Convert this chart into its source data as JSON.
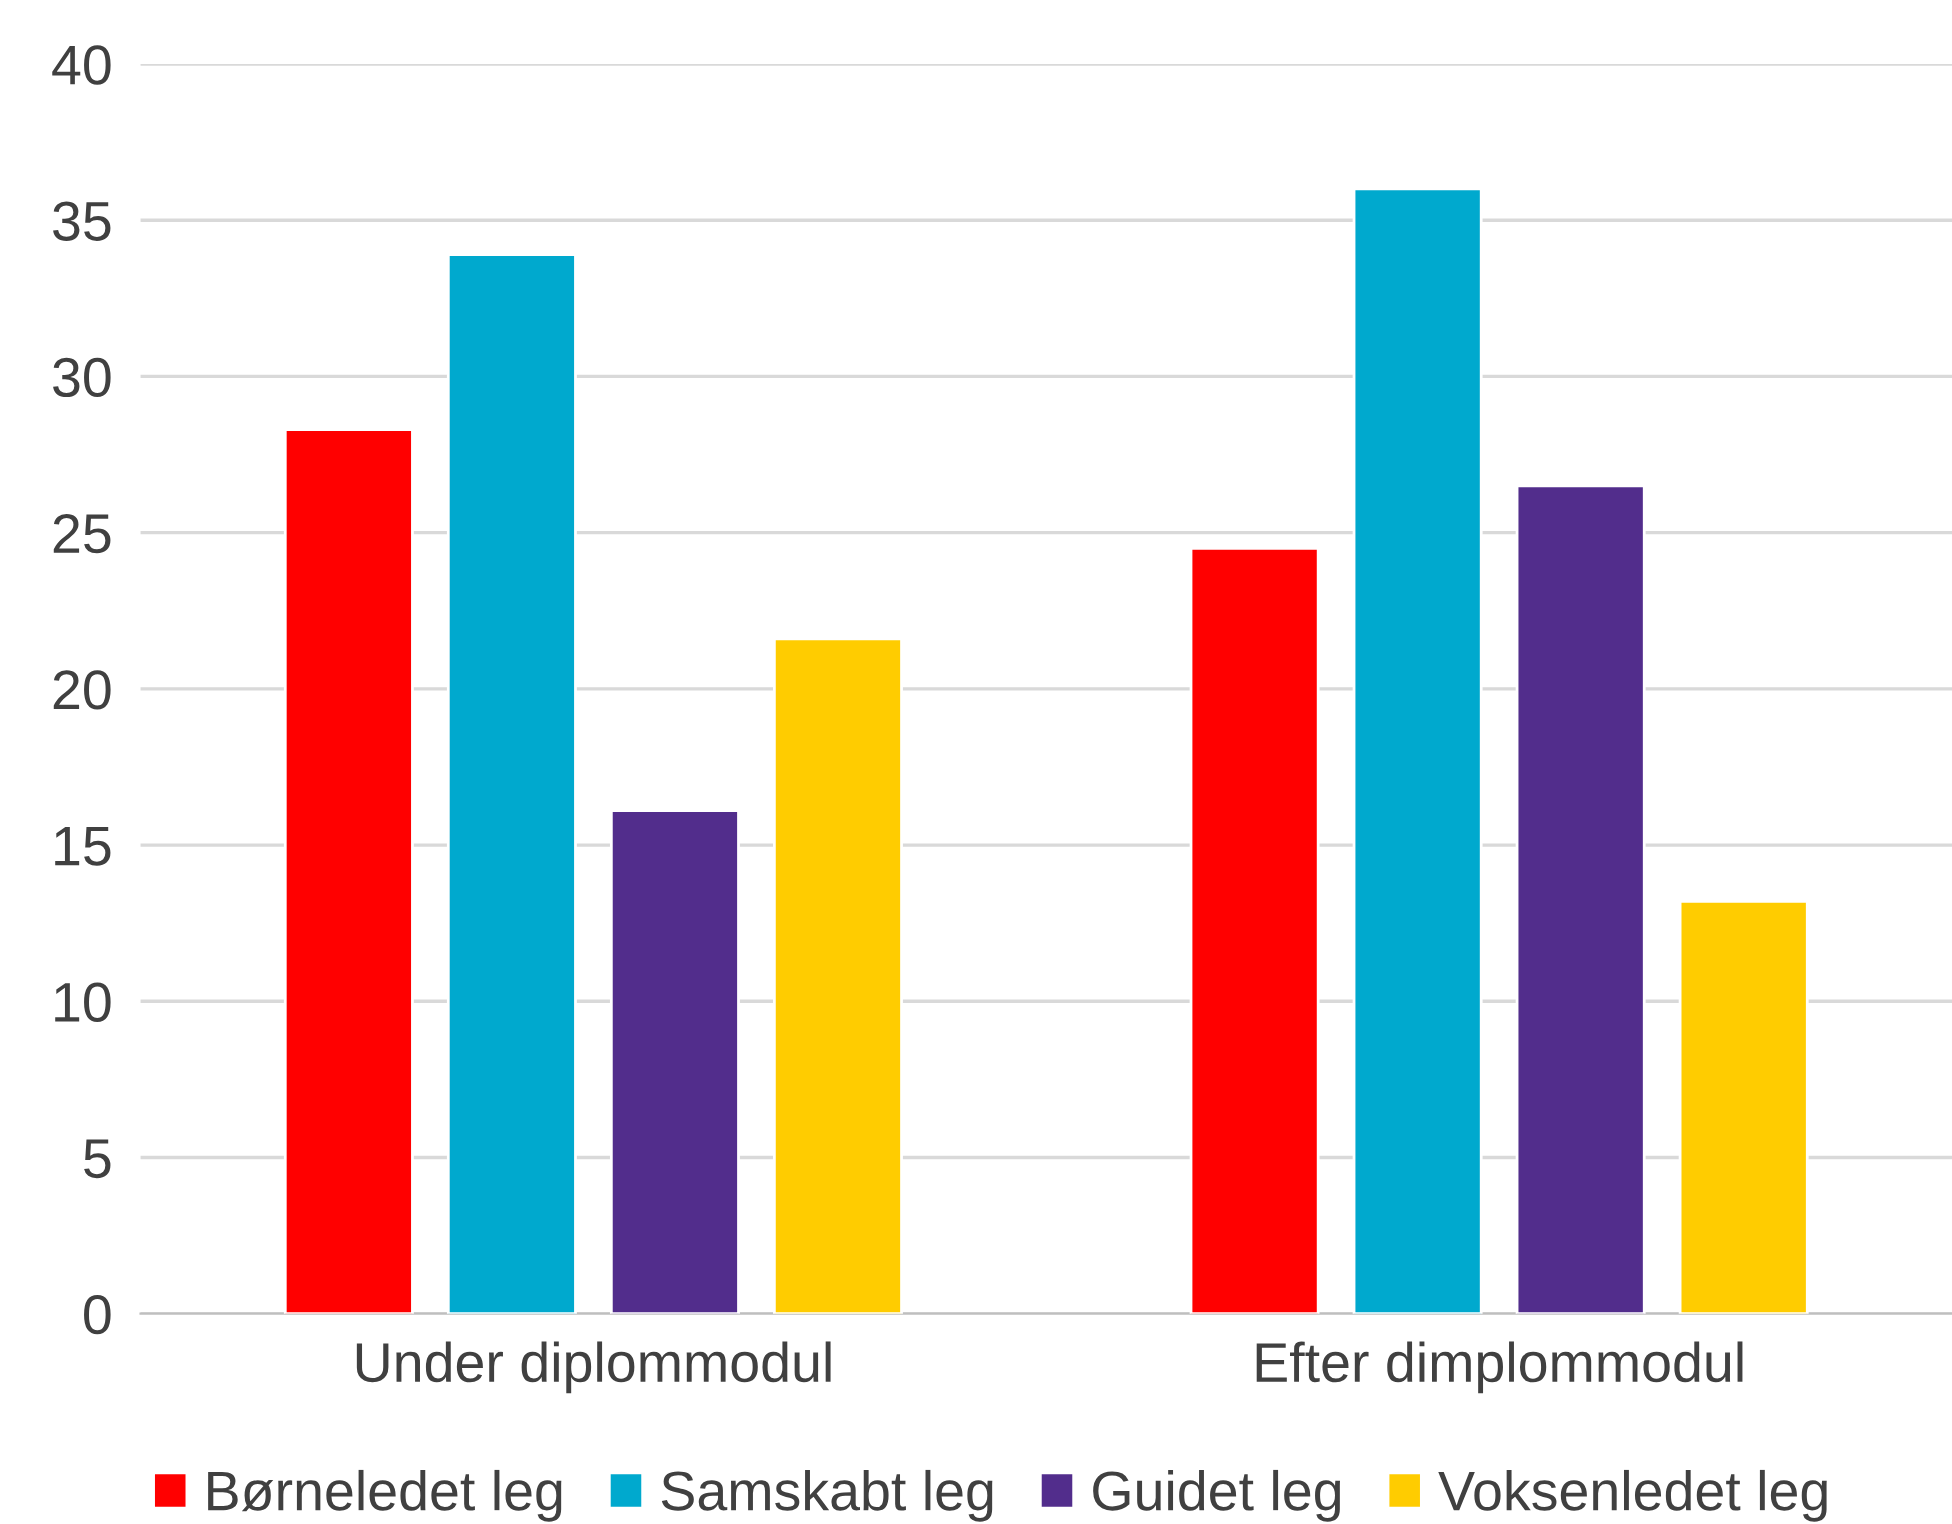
{
  "chart_data": {
    "type": "bar",
    "categories": [
      "Under diplommodul",
      "Efter dimplommodul"
    ],
    "series": [
      {
        "name": "Børneledet leg",
        "color": "#ff0000",
        "values": [
          28.3,
          24.5
        ]
      },
      {
        "name": "Samskabt leg",
        "color": "#00a9ce",
        "values": [
          33.9,
          36.0
        ]
      },
      {
        "name": "Guidet leg",
        "color": "#522d8c",
        "values": [
          16.1,
          26.5
        ]
      },
      {
        "name": "Voksenledet leg",
        "color": "#ffcc00",
        "values": [
          21.6,
          13.2
        ]
      }
    ],
    "ylim": [
      0,
      40
    ],
    "yticks": [
      0,
      5,
      10,
      15,
      20,
      25,
      30,
      35,
      40
    ],
    "grid": "y",
    "legend": "bottom"
  }
}
